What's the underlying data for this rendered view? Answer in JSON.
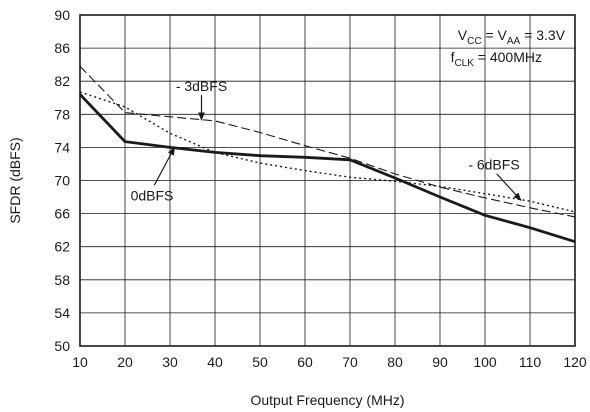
{
  "chart_data": {
    "type": "line",
    "title": "",
    "xlabel": "Output Frequency (MHz)",
    "ylabel": "SFDR (dBFS)",
    "xlim": [
      10,
      120
    ],
    "ylim": [
      50,
      90
    ],
    "x_ticks": [
      10,
      20,
      30,
      40,
      50,
      60,
      70,
      80,
      90,
      100,
      110,
      120
    ],
    "y_ticks": [
      50,
      54,
      58,
      62,
      66,
      70,
      74,
      78,
      82,
      86,
      90
    ],
    "grid": true,
    "series": [
      {
        "name": "0dBFS",
        "style": "solid",
        "x": [
          10,
          20,
          30,
          40,
          50,
          60,
          70,
          80,
          90,
          100,
          110,
          120
        ],
        "y": [
          80.4,
          74.7,
          74.0,
          73.4,
          73.0,
          72.8,
          72.5,
          70.3,
          68.0,
          65.8,
          64.3,
          62.6
        ]
      },
      {
        "name": "- 3dBFS",
        "style": "dashed",
        "x": [
          10,
          20,
          30,
          40,
          50,
          60,
          70,
          80,
          90,
          100,
          110,
          120
        ],
        "y": [
          83.8,
          78.2,
          77.7,
          77.2,
          75.8,
          74.2,
          72.7,
          70.8,
          69.2,
          67.9,
          66.7,
          65.6
        ]
      },
      {
        "name": "- 6dBFS",
        "style": "dotted",
        "x": [
          10,
          20,
          30,
          40,
          50,
          60,
          70,
          80,
          90,
          100,
          110,
          120
        ],
        "y": [
          80.7,
          78.9,
          75.7,
          73.4,
          72.1,
          71.2,
          70.4,
          69.9,
          69.3,
          68.4,
          67.5,
          66.2
        ]
      }
    ],
    "annotations": [
      {
        "text": "- 3dBFS",
        "x": 37,
        "y": 80.8,
        "arrow_to": [
          37,
          77.3
        ]
      },
      {
        "text": "0dBFS",
        "x": 26,
        "y": 67.6,
        "arrow_to": [
          31,
          74.0
        ]
      },
      {
        "text": "- 6dBFS",
        "x": 102,
        "y": 71.3,
        "arrow_to": [
          108,
          67.6
        ]
      }
    ],
    "conditions": {
      "line1": {
        "a": "V",
        "a_sub": "CC",
        "mid": " = V",
        "b_sub": "AA",
        "tail": " = 3.3V"
      },
      "line2": {
        "a": "f",
        "a_sub": "CLK",
        "tail": " = 400MHz"
      }
    }
  }
}
